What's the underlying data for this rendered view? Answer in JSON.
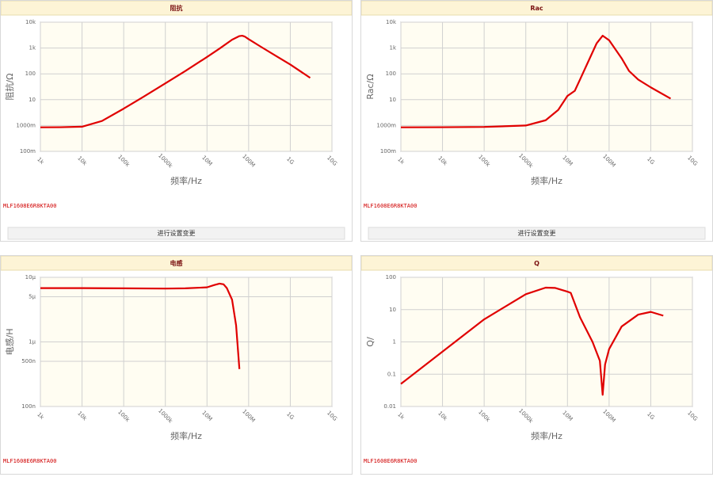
{
  "chart_data": [
    {
      "type": "line",
      "title": "阻抗",
      "y_label": "阻抗/Ω",
      "x_label": "频率/Hz",
      "part_number": "MLF1608E6R8KTA00",
      "button_label": "进行设置变更",
      "log_x": true,
      "log_y": true,
      "grid": true,
      "color": "#e00000",
      "x": [
        1000,
        3000,
        10000,
        30000,
        100000,
        300000,
        1000000,
        3000000,
        10000000,
        20000000,
        40000000,
        60000000,
        70000000,
        80000000,
        100000000,
        200000000,
        500000000,
        1000000000,
        3000000000
      ],
      "values": [
        0.85,
        0.86,
        0.9,
        1.5,
        4.5,
        13,
        43,
        128,
        450,
        950,
        2100,
        2900,
        3000,
        2800,
        2200,
        1100,
        450,
        230,
        70
      ],
      "xlim": [
        1000,
        10000000000
      ],
      "ylim": [
        0.1,
        10000
      ],
      "xticks": [
        {
          "value": 1000,
          "label": "1k"
        },
        {
          "value": 10000,
          "label": "10k"
        },
        {
          "value": 100000,
          "label": "100k"
        },
        {
          "value": 1000000,
          "label": "1000k"
        },
        {
          "value": 10000000,
          "label": "10M"
        },
        {
          "value": 100000000,
          "label": "100M"
        },
        {
          "value": 1000000000,
          "label": "1G"
        },
        {
          "value": 10000000000,
          "label": "10G"
        }
      ],
      "yticks": [
        {
          "value": 0.1,
          "label": "100m"
        },
        {
          "value": 1,
          "label": "1000m"
        },
        10,
        100,
        {
          "value": 1000,
          "label": "1k"
        },
        {
          "value": 10000,
          "label": "10k"
        }
      ]
    },
    {
      "type": "line",
      "title": "Rac",
      "y_label": "Rac/Ω",
      "x_label": "频率/Hz",
      "part_number": "MLF1608E6R8KTA00",
      "button_label": "进行设置变更",
      "log_x": true,
      "log_y": true,
      "grid": true,
      "color": "#e00000",
      "x": [
        1000,
        10000,
        100000,
        1000000,
        3000000,
        6000000,
        10000000,
        15000000,
        20000000,
        30000000,
        50000000,
        70000000,
        100000000,
        200000000,
        300000000,
        500000000,
        1000000000,
        3000000000
      ],
      "values": [
        0.85,
        0.86,
        0.88,
        1.0,
        1.6,
        4,
        14,
        22,
        60,
        250,
        1500,
        3000,
        2000,
        400,
        130,
        60,
        30,
        11
      ],
      "xlim": [
        1000,
        10000000000
      ],
      "ylim": [
        0.1,
        10000
      ],
      "xticks": [
        {
          "value": 1000,
          "label": "1k"
        },
        {
          "value": 10000,
          "label": "10k"
        },
        {
          "value": 100000,
          "label": "100k"
        },
        {
          "value": 1000000,
          "label": "1000k"
        },
        {
          "value": 10000000,
          "label": "10M"
        },
        {
          "value": 100000000,
          "label": "100M"
        },
        {
          "value": 1000000000,
          "label": "1G"
        },
        {
          "value": 10000000000,
          "label": "10G"
        }
      ],
      "yticks": [
        {
          "value": 0.1,
          "label": "100m"
        },
        {
          "value": 1,
          "label": "1000m"
        },
        10,
        100,
        {
          "value": 1000,
          "label": "1k"
        },
        {
          "value": 10000,
          "label": "10k"
        }
      ]
    },
    {
      "type": "line",
      "title": "电感",
      "y_label": "电感/H",
      "x_label": "频率/Hz",
      "part_number": "MLF1608E6R8KTA00",
      "log_x": true,
      "log_y": true,
      "grid": true,
      "color": "#e00000",
      "x": [
        1000,
        10000,
        100000,
        1000000,
        3000000,
        10000000,
        15000000,
        20000000,
        25000000,
        30000000,
        40000000,
        50000000,
        60000000
      ],
      "values": [
        6.8e-06,
        6.8e-06,
        6.75e-06,
        6.7e-06,
        6.75e-06,
        7e-06,
        7.6e-06,
        8e-06,
        7.8e-06,
        6.8e-06,
        4.5e-06,
        1.8e-06,
        3.8e-07
      ],
      "xlim": [
        1000,
        10000000000
      ],
      "ylim": [
        1e-07,
        1e-05
      ],
      "xticks": [
        {
          "value": 1000,
          "label": "1k"
        },
        {
          "value": 10000,
          "label": "10k"
        },
        {
          "value": 100000,
          "label": "100k"
        },
        {
          "value": 1000000,
          "label": "1000k"
        },
        {
          "value": 10000000,
          "label": "10M"
        },
        {
          "value": 100000000,
          "label": "100M"
        },
        {
          "value": 1000000000,
          "label": "1G"
        },
        {
          "value": 10000000000,
          "label": "10G"
        }
      ],
      "yticks": [
        {
          "value": 1e-07,
          "label": "100n"
        },
        {
          "value": 5e-07,
          "label": "500n"
        },
        {
          "value": 1e-06,
          "label": "1μ"
        },
        {
          "value": 5e-06,
          "label": "5μ"
        },
        {
          "value": 1e-05,
          "label": "10μ"
        }
      ]
    },
    {
      "type": "line",
      "title": "Q",
      "y_label": "Q/",
      "x_label": "频率/Hz",
      "part_number": "MLF1608E6R8KTA00",
      "log_x": true,
      "log_y": true,
      "grid": true,
      "color": "#e00000",
      "x": [
        1000,
        10000,
        100000,
        1000000,
        3000000,
        5000000,
        10000000,
        12000000,
        20000000,
        40000000,
        60000000,
        70000000,
        80000000,
        100000000,
        200000000,
        500000000,
        1000000000,
        2000000000
      ],
      "values": [
        0.05,
        0.5,
        5,
        30,
        48,
        47,
        36,
        33,
        5.8,
        1.0,
        0.26,
        0.023,
        0.2,
        0.6,
        3,
        7,
        8.5,
        6.5
      ],
      "xlim": [
        1000,
        10000000000
      ],
      "ylim": [
        0.01,
        100
      ],
      "xticks": [
        {
          "value": 1000,
          "label": "1k"
        },
        {
          "value": 10000,
          "label": "10k"
        },
        {
          "value": 100000,
          "label": "100k"
        },
        {
          "value": 1000000,
          "label": "1000k"
        },
        {
          "value": 10000000,
          "label": "10M"
        },
        {
          "value": 100000000,
          "label": "100M"
        },
        {
          "value": 1000000000,
          "label": "1G"
        },
        {
          "value": 10000000000,
          "label": "10G"
        }
      ],
      "yticks": [
        0.01,
        0.1,
        1,
        10,
        100
      ]
    }
  ]
}
